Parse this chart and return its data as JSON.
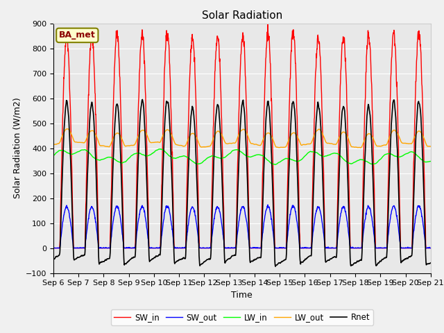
{
  "title": "Solar Radiation",
  "xlabel": "Time",
  "ylabel": "Solar Radiation (W/m2)",
  "ylim": [
    -100,
    900
  ],
  "yticks": [
    -100,
    0,
    100,
    200,
    300,
    400,
    500,
    600,
    700,
    800,
    900
  ],
  "start_day": 6,
  "end_day": 21,
  "n_days": 15,
  "annotation": "BA_met",
  "fig_facecolor": "#f0f0f0",
  "ax_facecolor": "#e8e8e8",
  "series_colors": {
    "SW_in": "red",
    "SW_out": "blue",
    "LW_in": "lime",
    "LW_out": "orange",
    "Rnet": "black"
  },
  "line_widths": {
    "SW_in": 1.0,
    "SW_out": 1.0,
    "LW_in": 1.0,
    "LW_out": 1.0,
    "Rnet": 1.2
  }
}
